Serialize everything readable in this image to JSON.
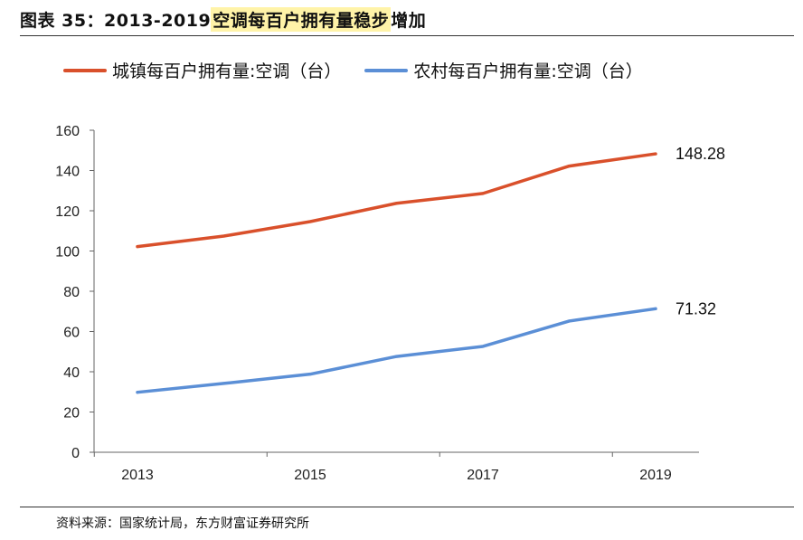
{
  "header": {
    "title_prefix": "图表 35：2013-2019 ",
    "title_highlight": "空调每百户拥有量稳步",
    "title_suffix": "增加"
  },
  "source": "资料来源：国家统计局，东方财富证券研究所",
  "chart_data": {
    "type": "line",
    "x": [
      2013,
      2014,
      2015,
      2016,
      2017,
      2018,
      2019
    ],
    "x_tick_labels": [
      "2013",
      "2015",
      "2017",
      "2019"
    ],
    "ylim": [
      0,
      160
    ],
    "y_ticks": [
      0,
      20,
      40,
      60,
      80,
      100,
      120,
      140,
      160
    ],
    "grid": false,
    "legend_position": "top",
    "series": [
      {
        "name": "城镇每百户拥有量:空调（台）",
        "color": "#d9502b",
        "values": [
          102.2,
          107.4,
          114.6,
          123.7,
          128.6,
          142.2,
          148.28
        ],
        "end_label": "148.28"
      },
      {
        "name": "农村每百户拥有量:空调（台）",
        "color": "#5b8fd6",
        "values": [
          29.8,
          34.2,
          38.8,
          47.6,
          52.6,
          65.2,
          71.32
        ],
        "end_label": "71.32"
      }
    ]
  }
}
